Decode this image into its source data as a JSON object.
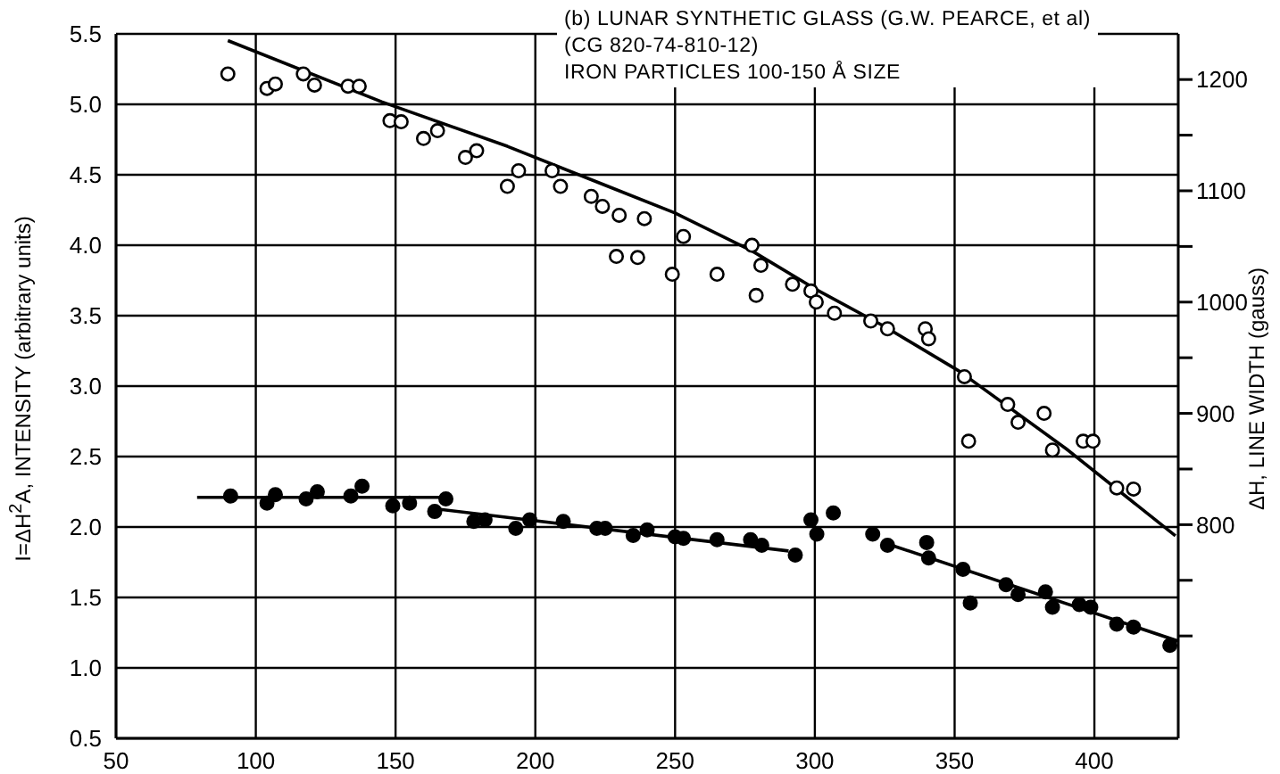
{
  "chart_data": {
    "type": "scatter",
    "ylabel": "I=ΔH$^{2}$A, INTENSITY (arbitrary units)",
    "y2label": "ΔH, LINE WIDTH (gauss)",
    "annotations": [
      "(b) LUNAR SYNTHETIC GLASS (G.W. PEARCE, et al)",
      "(CG 820-74-810-12)",
      "IRON PARTICLES 100-150 Å SIZE"
    ],
    "xlim": [
      50,
      430
    ],
    "xticks": [
      50,
      100,
      150,
      200,
      250,
      300,
      350,
      400
    ],
    "ylim": [
      0.5,
      5.5
    ],
    "yticks": [
      0.5,
      {
        "value": 1,
        "label": "1.0"
      },
      1.5,
      {
        "value": 2,
        "label": "2.0"
      },
      2.5,
      {
        "value": 3,
        "label": "3.0"
      },
      3.5,
      {
        "value": 4,
        "label": "4.0"
      },
      4.5,
      {
        "value": 5,
        "label": "5.0"
      },
      5.5
    ],
    "y2lim": [
      608,
      1241
    ],
    "y2ticks": [
      {
        "value": 700,
        "label": null
      },
      {
        "value": 750,
        "label": null
      },
      800,
      {
        "value": 850,
        "label": null
      },
      900,
      {
        "value": 950,
        "label": null
      },
      1000,
      {
        "value": 1050,
        "label": null
      },
      1100,
      {
        "value": 1150,
        "label": null
      },
      1200
    ],
    "grid": true,
    "marker": "circle",
    "series": [
      {
        "axis": "y2",
        "color": "#000000",
        "x": [
          90,
          104,
          107,
          117,
          121,
          133,
          137,
          148,
          152,
          160,
          165,
          175,
          179,
          190,
          194,
          206,
          209,
          220,
          224,
          229,
          230,
          236.6,
          239,
          249,
          253,
          265,
          277.5,
          279,
          280.7,
          292,
          298.6,
          300.5,
          307,
          320,
          326,
          339.5,
          340.7,
          353.5,
          355,
          369,
          372.7,
          382,
          385,
          396,
          399.5,
          408,
          414
        ],
        "values": [
          1205,
          1192,
          1196,
          1205,
          1195,
          1194,
          1194,
          1163,
          1162,
          1147,
          1154,
          1130,
          1136,
          1104,
          1118,
          1118,
          1104,
          1095,
          1086,
          1041,
          1078,
          1040,
          1075,
          1025,
          1059,
          1025,
          1051,
          1006,
          1033,
          1016,
          1010,
          1000,
          990,
          983,
          976,
          976,
          967,
          933,
          875,
          908,
          892,
          900,
          867,
          875,
          875,
          833,
          832
        ]
      },
      {
        "type": "line",
        "axis": "y2",
        "color": "#000000",
        "marker": "none",
        "x": [
          90,
          145,
          190,
          224,
          250,
          277.5,
          300,
          325,
          351.6,
          390,
          429
        ],
        "values": [
          1235,
          1180,
          1140,
          1106,
          1080,
          1046,
          1012,
          978,
          938,
          868,
          790
        ]
      },
      {
        "color": "#000000",
        "x": [
          91,
          104,
          107,
          118,
          122,
          134,
          138,
          149,
          155,
          164,
          168,
          178,
          182,
          193,
          198,
          210,
          222,
          225,
          235,
          240,
          250,
          253,
          265,
          277,
          281,
          293,
          298.6,
          300.7,
          306.6,
          320.7,
          326,
          340,
          340.7,
          353,
          355.6,
          368.4,
          372.7,
          382.5,
          385,
          394.6,
          398.7,
          408,
          414,
          427
        ],
        "values": [
          2.22,
          2.17,
          2.23,
          2.2,
          2.25,
          2.22,
          2.29,
          2.15,
          2.17,
          2.11,
          2.2,
          2.04,
          2.05,
          1.99,
          2.05,
          2.04,
          1.99,
          1.99,
          1.94,
          1.98,
          1.93,
          1.92,
          1.91,
          1.91,
          1.87,
          1.8,
          2.05,
          1.95,
          2.1,
          1.95,
          1.87,
          1.89,
          1.78,
          1.7,
          1.46,
          1.59,
          1.52,
          1.54,
          1.43,
          1.45,
          1.43,
          1.31,
          1.29,
          1.16
        ]
      },
      {
        "type": "line",
        "color": "#000000",
        "marker": "none",
        "x": [
          79,
          168
        ],
        "values": [
          2.21,
          2.21
        ]
      },
      {
        "type": "line",
        "color": "#000000",
        "marker": "none",
        "x": [
          164,
          290.6
        ],
        "values": [
          2.13,
          1.83
        ]
      },
      {
        "type": "line",
        "color": "#000000",
        "marker": "none",
        "x": [
          326,
          430
        ],
        "values": [
          1.88,
          1.19
        ]
      }
    ]
  }
}
